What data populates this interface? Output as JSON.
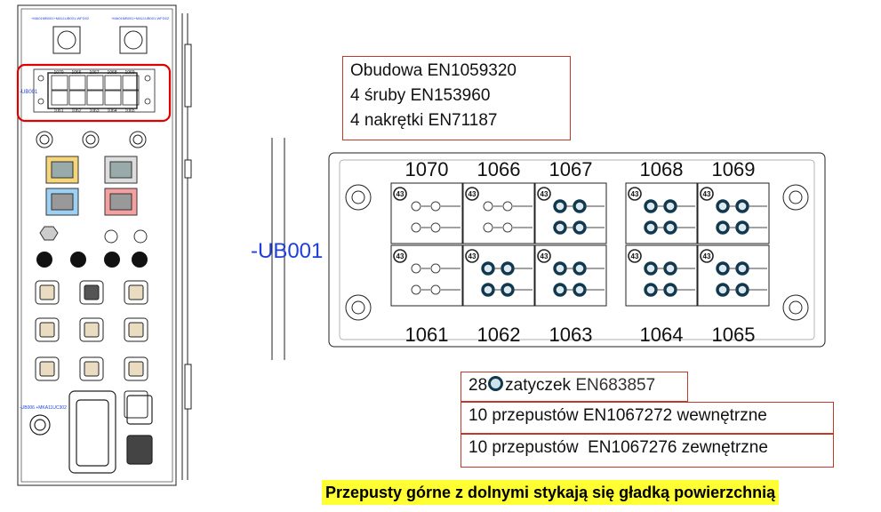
{
  "cabinet": {
    "ub_label": "-UB001",
    "top_labels": [
      "+MA01MB001+MA11UB001-WFD02",
      "+MA01MB001+MA11UB001-WFD02"
    ],
    "ub_terminals_top": [
      "1070",
      "1066",
      "1067",
      "1068",
      "1069"
    ],
    "ub_terminals_bottom": [
      "1061",
      "1062",
      "1063",
      "1064",
      "1065"
    ],
    "bottom_label": "-UB006 +MKA11UC302"
  },
  "detail": {
    "label": "-UB001",
    "terminals_top": [
      "1070",
      "1066",
      "1067",
      "1068",
      "1069"
    ],
    "terminals_bottom": [
      "1061",
      "1062",
      "1063",
      "1064",
      "1065"
    ],
    "cell_badge": "43",
    "plugged_counts_top": [
      0,
      0,
      4,
      4,
      4
    ],
    "plugged_counts_bottom": [
      0,
      4,
      4,
      4,
      4
    ]
  },
  "info": {
    "housing": "Obudowa EN1059320",
    "screws": "4 śruby EN153960",
    "nuts": "4 nakrętki EN71187"
  },
  "parts": {
    "plugs_count": "28",
    "plugs_text": "zatyczek",
    "plugs_code": "EN683857",
    "inner": "10 przepustów EN1067272 wewnętrzne",
    "outer": "10 przepustów  EN1067276 zewnętrzne"
  },
  "note": "Przepusty górne z dolnymi stykają się gładką powierzchnią",
  "colors": {
    "frame": "#c0392b",
    "highlight": "#e00000",
    "plug": "#12384d",
    "label_blue": "#1f3fd8",
    "note_bg": "#ffff33"
  }
}
